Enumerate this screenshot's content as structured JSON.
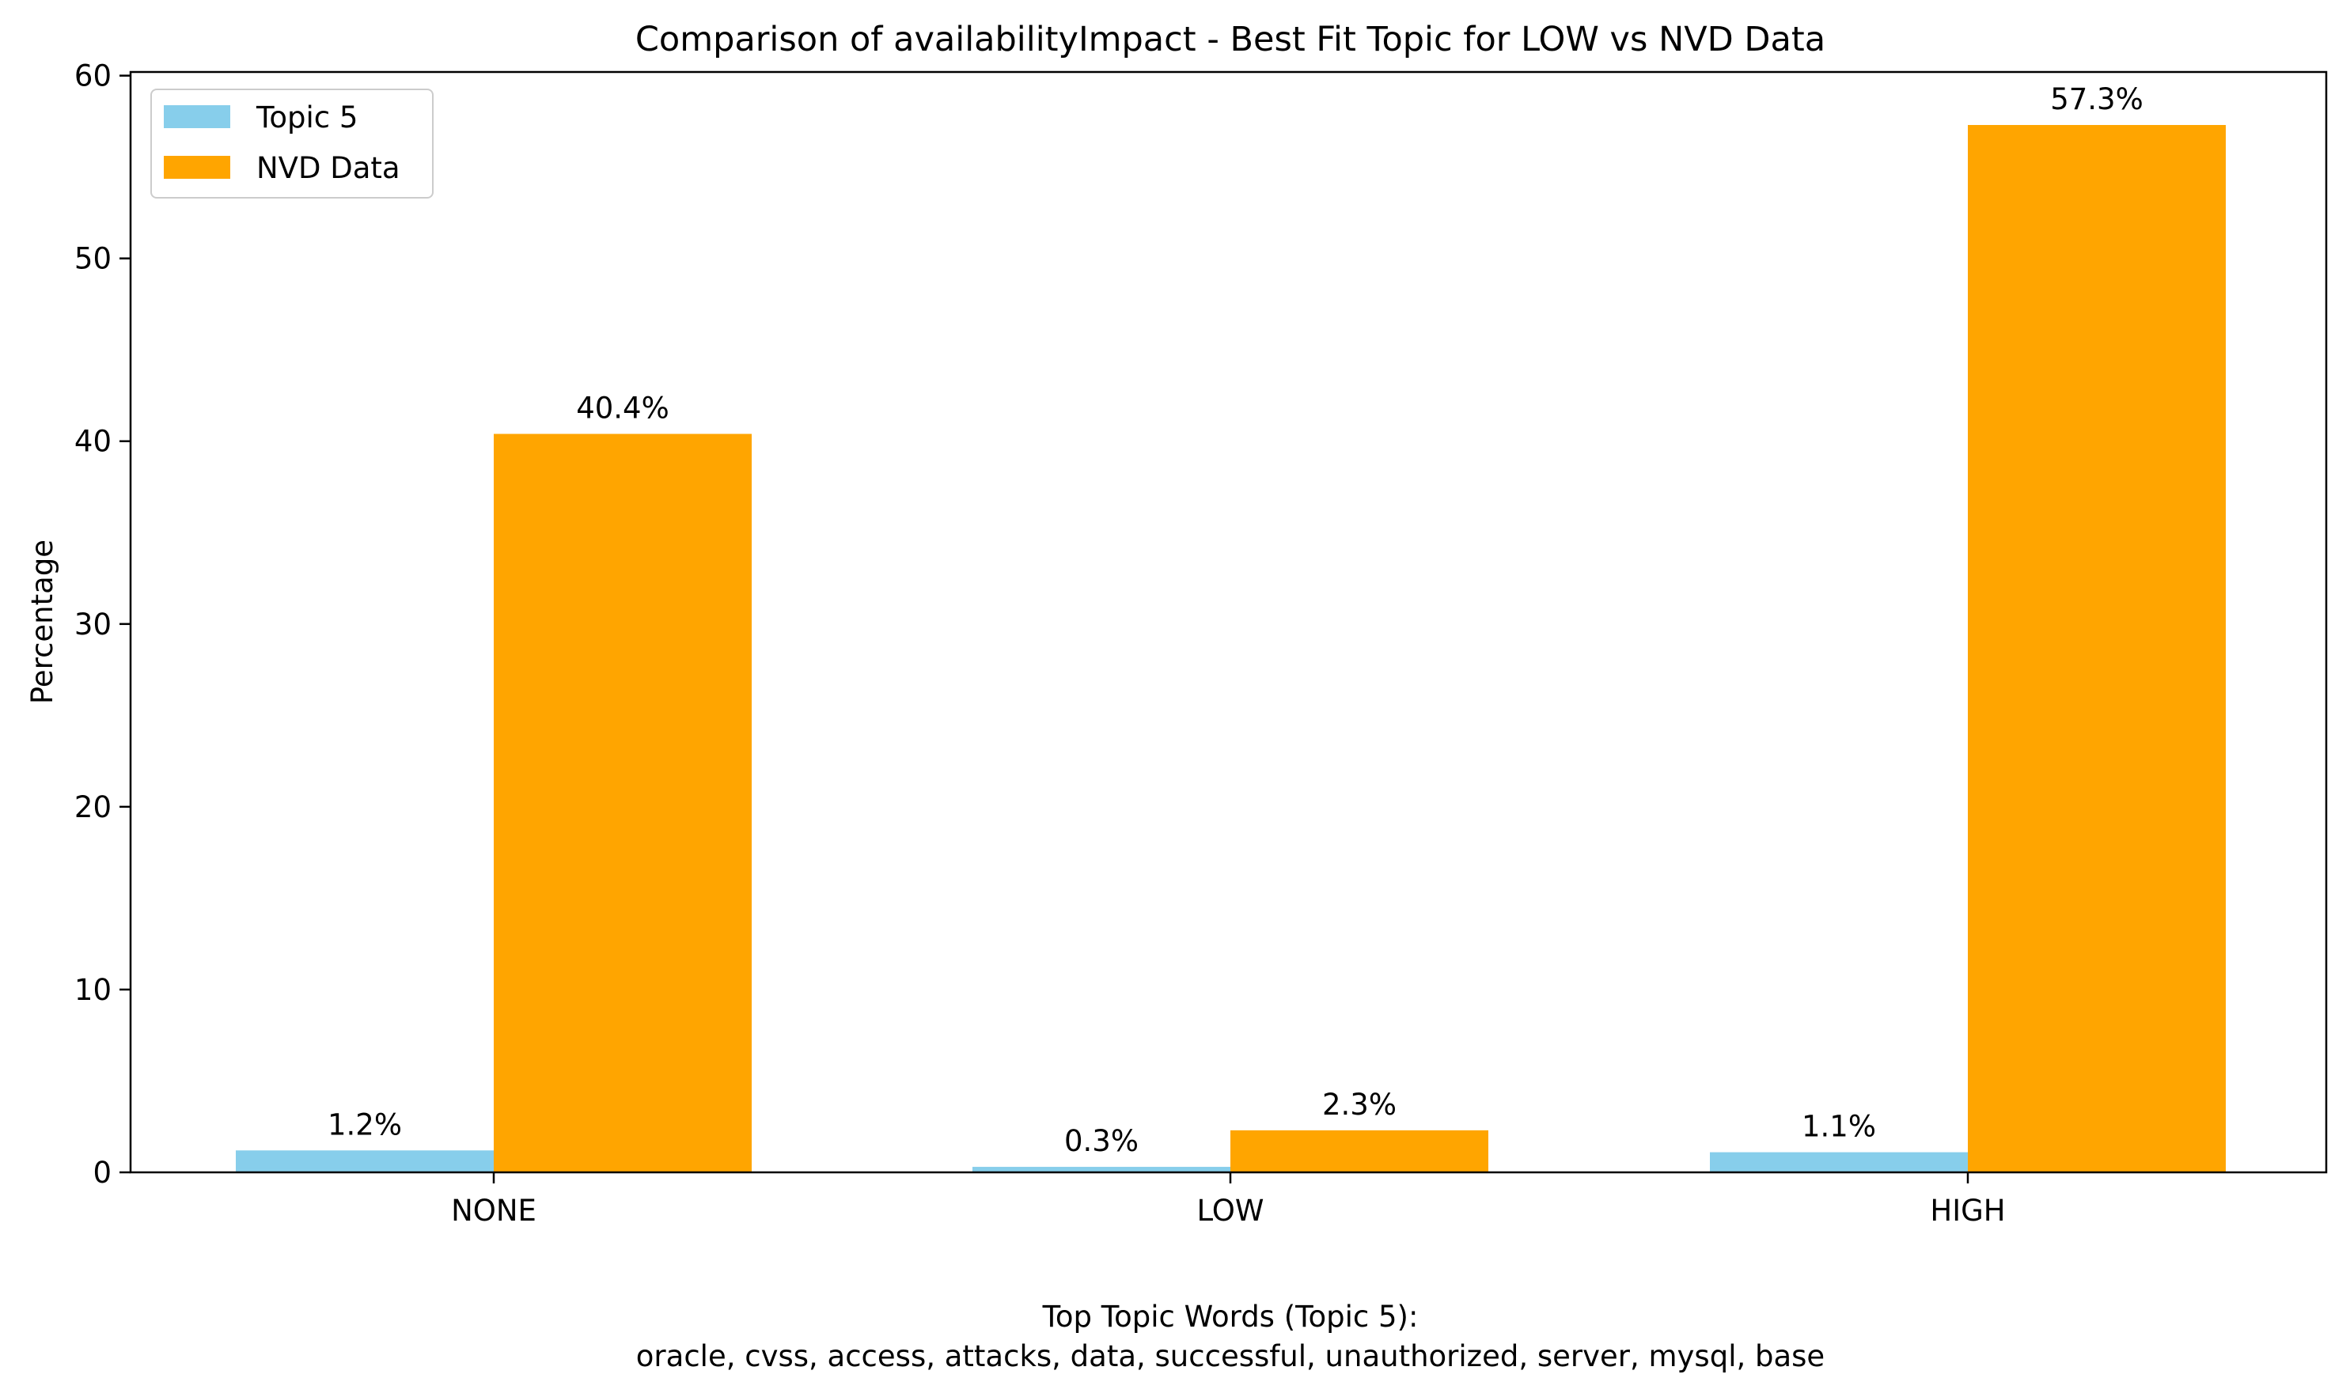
{
  "chart_data": {
    "type": "bar",
    "title": "Comparison of availabilityImpact - Best Fit Topic for LOW vs NVD Data",
    "xlabel": "",
    "ylabel": "Percentage",
    "categories": [
      "NONE",
      "LOW",
      "HIGH"
    ],
    "series": [
      {
        "name": "Topic 5",
        "color": "#87ceeb",
        "values": [
          1.2,
          0.3,
          1.1
        ],
        "labels": [
          "1.2%",
          "0.3%",
          "1.1%"
        ]
      },
      {
        "name": "NVD Data",
        "color": "#ffa500",
        "values": [
          40.4,
          2.3,
          57.3
        ],
        "labels": [
          "40.4%",
          "2.3%",
          "57.3%"
        ]
      }
    ],
    "ylim": [
      0,
      60.2
    ],
    "yticks": [
      0,
      10,
      20,
      30,
      40,
      50,
      60
    ],
    "grid": false,
    "legend": "upper-left",
    "footer": {
      "heading": "Top Topic Words (Topic 5):",
      "words": "oracle,  cvss,  access,  attacks,  data,  successful,  unauthorized,  server,  mysql,  base"
    }
  }
}
